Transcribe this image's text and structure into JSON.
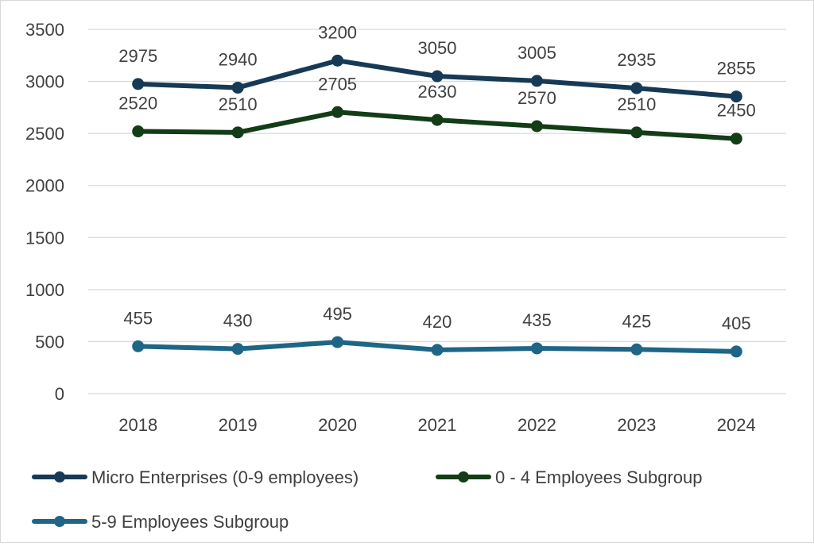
{
  "chart_data": {
    "type": "line",
    "title": "",
    "xlabel": "",
    "ylabel": "",
    "categories": [
      "2018",
      "2019",
      "2020",
      "2021",
      "2022",
      "2023",
      "2024"
    ],
    "ylim": [
      0,
      3500
    ],
    "yticks": [
      0,
      500,
      1000,
      1500,
      2000,
      2500,
      3000,
      3500
    ],
    "ytick_labels": [
      "0",
      "500",
      "1000",
      "1500",
      "2000",
      "2500",
      "3000",
      "3500"
    ],
    "grid": true,
    "legend_position": "bottom",
    "series": [
      {
        "name": "Micro Enterprises (0-9 employees)",
        "color": "#163a56",
        "values": [
          2975,
          2940,
          3200,
          3050,
          3005,
          2935,
          2855
        ],
        "value_labels": [
          "2975",
          "2940",
          "3200",
          "3050",
          "3005",
          "2935",
          "2855"
        ]
      },
      {
        "name": "0 - 4 Employees Subgroup",
        "color": "#123d16",
        "values": [
          2520,
          2510,
          2705,
          2630,
          2570,
          2510,
          2450
        ],
        "value_labels": [
          "2520",
          "2510",
          "2705",
          "2630",
          "2570",
          "2510",
          "2450"
        ]
      },
      {
        "name": "5-9 Employees Subgroup",
        "color": "#1e6586",
        "values": [
          455,
          430,
          495,
          420,
          435,
          425,
          405
        ],
        "value_labels": [
          "455",
          "430",
          "495",
          "420",
          "435",
          "425",
          "405"
        ]
      }
    ]
  }
}
